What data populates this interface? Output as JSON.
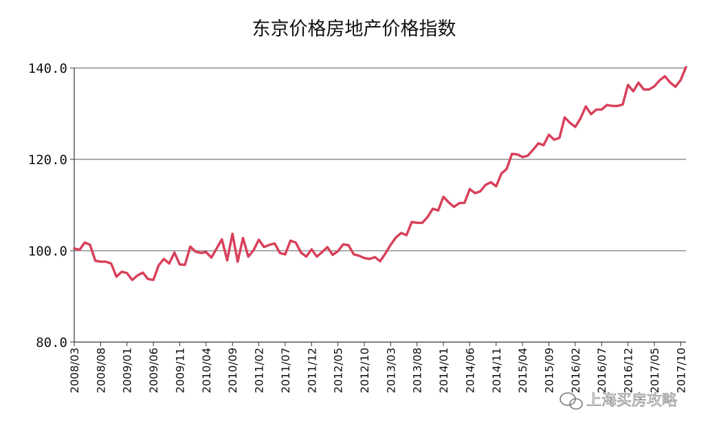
{
  "chart_data": {
    "type": "line",
    "title": "东京价格房地产价格指数",
    "xlabel": "",
    "ylabel": "",
    "ylim": [
      80,
      140
    ],
    "yticks": [
      80,
      100,
      120,
      140
    ],
    "ytick_labels": [
      "80.0",
      "100.0",
      "120.0",
      "140.0"
    ],
    "xtick_labels": [
      "2008/03",
      "2008/08",
      "2009/01",
      "2009/06",
      "2009/11",
      "2010/04",
      "2010/09",
      "2011/02",
      "2011/07",
      "2011/12",
      "2012/05",
      "2012/10",
      "2013/03",
      "2013/08",
      "2014/01",
      "2014/06",
      "2014/11",
      "2015/04",
      "2015/09",
      "2016/02",
      "2016/07",
      "2016/12",
      "2017/05",
      "2017/10"
    ],
    "grid": true,
    "series": [
      {
        "name": "东京价格房地产价格指数",
        "color": "#d8405a",
        "start": "2008/03",
        "values": [
          100.5,
          100.2,
          101.8,
          101.3,
          97.8,
          97.6,
          97.6,
          97.2,
          94.3,
          95.4,
          95.1,
          93.6,
          94.6,
          95.2,
          93.8,
          93.6,
          96.8,
          98.2,
          97.2,
          99.6,
          97.0,
          96.9,
          100.9,
          99.8,
          99.5,
          99.7,
          98.5,
          100.5,
          102.5,
          97.9,
          103.7,
          97.6,
          102.8,
          98.7,
          100.1,
          102.4,
          100.8,
          101.3,
          101.6,
          99.5,
          99.2,
          102.2,
          101.8,
          99.6,
          98.7,
          100.3,
          98.7,
          99.7,
          100.8,
          99.1,
          99.9,
          101.4,
          101.2,
          99.2,
          98.9,
          98.4,
          98.2,
          98.6,
          97.7,
          99.4,
          101.3,
          102.9,
          103.9,
          103.4,
          106.3,
          106.1,
          106.1,
          107.4,
          109.2,
          108.8,
          111.8,
          110.6,
          109.6,
          110.4,
          110.5,
          113.5,
          112.6,
          113.0,
          114.4,
          115.0,
          114.1,
          116.9,
          117.9,
          121.2,
          121.1,
          120.5,
          120.8,
          122.1,
          123.5,
          123.1,
          125.4,
          124.3,
          124.7,
          129.2,
          128.0,
          127.1,
          129.0,
          131.6,
          129.9,
          130.9,
          130.9,
          131.9,
          131.7,
          131.7,
          132.0,
          136.3,
          134.9,
          136.8,
          135.3,
          135.3,
          136.0,
          137.3,
          138.2,
          136.8,
          135.9,
          137.4,
          140.2
        ]
      }
    ]
  },
  "colors": {
    "line": "#d8405a",
    "grid": "#555555",
    "axis": "#333333"
  },
  "watermark": "上海买房攻略"
}
